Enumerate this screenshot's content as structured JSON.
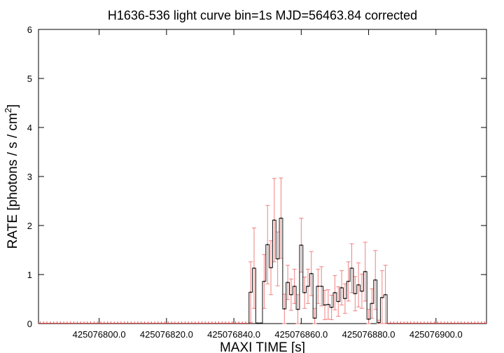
{
  "chart_data": {
    "type": "line",
    "title": "H1636-536 light curve bin=1s MJD=56463.84 corrected",
    "xlabel": "MAXI TIME [s]",
    "ylabel_main": "RATE [photons / s / cm",
    "ylabel_sup": "2",
    "ylabel_close": "]",
    "xlim": [
      425076782.0,
      425076915.0
    ],
    "ylim": [
      0,
      6
    ],
    "grid": false,
    "x_ticks": [
      425076800.0,
      425076820.0,
      425076840.0,
      425076860.0,
      425076880.0,
      425076900.0
    ],
    "x_tick_labels": [
      "425076800.0",
      "425076820.0",
      "425076840.0",
      "425076860.0",
      "425076880.0",
      "425076900.0"
    ],
    "y_ticks": [
      0,
      1,
      2,
      3,
      4,
      5,
      6
    ],
    "y_tick_labels": [
      "0",
      "1",
      "2",
      "3",
      "4",
      "5",
      "6"
    ],
    "colors": {
      "steps": "#111111",
      "errors": "#f08080",
      "zero_markers": "#e24a4a"
    },
    "bin_width": 1.0,
    "active_start": 425076844.5,
    "rate": [
      0.64,
      1.13,
      0.01,
      0.01,
      0.86,
      1.61,
      1.14,
      2.11,
      1.32,
      2.15,
      0.3,
      0.84,
      0.59,
      0.76,
      0.29,
      1.6,
      0.63,
      0.76,
      1.02,
      0.11,
      0.76,
      0.76,
      0.38,
      0.39,
      0.33,
      0.63,
      0.45,
      0.73,
      0.51,
      0.86,
      1.13,
      0.61,
      0.79,
      0.66,
      1.06,
      0.09,
      0.41,
      0.89,
      0.02,
      0.53,
      0.59
    ],
    "error": [
      0.62,
      0.82,
      0.0,
      0.0,
      0.55,
      0.8,
      0.55,
      0.85,
      0.55,
      0.82,
      0.3,
      0.35,
      0.32,
      0.35,
      0.3,
      0.55,
      0.32,
      0.35,
      0.45,
      0.2,
      0.35,
      0.4,
      0.3,
      0.3,
      0.25,
      0.35,
      0.3,
      0.35,
      0.3,
      0.4,
      0.5,
      0.35,
      0.45,
      0.35,
      0.6,
      0.2,
      0.3,
      0.6,
      0.05,
      0.55,
      0.6
    ]
  }
}
